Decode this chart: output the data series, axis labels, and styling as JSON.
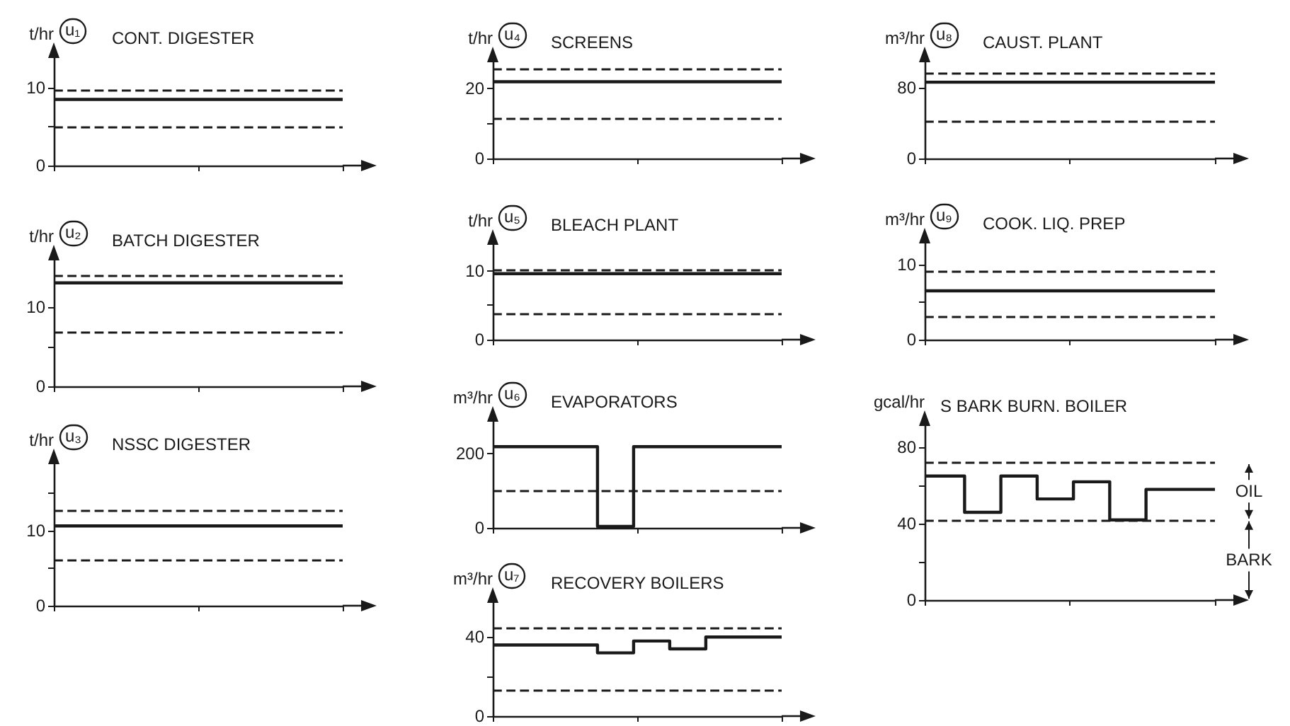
{
  "chart_data": [
    {
      "type": "step",
      "title": "CONT. DIGESTER",
      "ylabel": "t/hr",
      "subtitle": "u₁",
      "categories": [
        null,
        null,
        null
      ],
      "series": [
        {
          "color": "#1a1a1a",
          "values": [
            8.5,
            8.5,
            8.5
          ]
        }
      ],
      "ylim": [
        0,
        14
      ],
      "yticks": [
        0,
        {
          "value": 5,
          "label": null
        },
        10
      ],
      "ref_lines": [
        {
          "axis": "y",
          "value": 9.7,
          "color": "#1a1a1a",
          "line_style": "dashed"
        },
        {
          "axis": "y",
          "value": 5,
          "color": "#1a1a1a",
          "line_style": "dashed"
        }
      ],
      "tick_labels": "y",
      "marker": "none",
      "line_style": "solid"
    },
    {
      "type": "step",
      "title": "BATCH DIGESTER",
      "ylabel": "t/hr",
      "subtitle": "u₂",
      "categories": [
        null,
        null,
        null
      ],
      "series": [
        {
          "color": "#1a1a1a",
          "values": [
            13,
            13,
            13
          ]
        }
      ],
      "ylim": [
        0,
        16
      ],
      "yticks": [
        0,
        {
          "value": 5,
          "label": null
        },
        10
      ],
      "ref_lines": [
        {
          "axis": "y",
          "value": 14,
          "color": "#1a1a1a",
          "line_style": "dashed"
        },
        {
          "axis": "y",
          "value": 6.8,
          "color": "#1a1a1a",
          "line_style": "dashed"
        }
      ],
      "tick_labels": "y",
      "marker": "none",
      "line_style": "solid"
    },
    {
      "type": "step",
      "title": "NSSC DIGESTER",
      "ylabel": "t/hr",
      "subtitle": "u₃",
      "categories": [
        null,
        null,
        null
      ],
      "series": [
        {
          "color": "#1a1a1a",
          "values": [
            10.6,
            10.6,
            10.6
          ]
        }
      ],
      "ylim": [
        0,
        19
      ],
      "yticks": [
        0,
        {
          "value": 5,
          "label": null
        },
        10,
        {
          "value": 15,
          "label": null
        }
      ],
      "ref_lines": [
        {
          "axis": "y",
          "value": 12.6,
          "color": "#1a1a1a",
          "line_style": "dashed"
        },
        {
          "axis": "y",
          "value": 6,
          "color": "#1a1a1a",
          "line_style": "dashed"
        }
      ],
      "tick_labels": "y",
      "marker": "none",
      "line_style": "solid"
    },
    {
      "type": "step",
      "title": "SCREENS",
      "ylabel": "t/hr",
      "subtitle": "u₄",
      "categories": [
        null,
        null,
        null
      ],
      "series": [
        {
          "color": "#1a1a1a",
          "values": [
            22,
            22,
            22
          ]
        }
      ],
      "ylim": [
        0,
        28
      ],
      "yticks": [
        0,
        {
          "value": 10,
          "label": null
        },
        20
      ],
      "ref_lines": [
        {
          "axis": "y",
          "value": 25.6,
          "color": "#1a1a1a",
          "line_style": "dashed"
        },
        {
          "axis": "y",
          "value": 11.6,
          "color": "#1a1a1a",
          "line_style": "dashed"
        }
      ],
      "tick_labels": "y",
      "marker": "none",
      "line_style": "solid"
    },
    {
      "type": "step",
      "title": "BLEACH PLANT",
      "ylabel": "t/hr",
      "subtitle": "u₅",
      "categories": [
        null,
        null,
        null
      ],
      "series": [
        {
          "color": "#1a1a1a",
          "values": [
            9.6,
            9.6,
            9.6
          ]
        }
      ],
      "ylim": [
        0,
        14
      ],
      "yticks": [
        0,
        {
          "value": 5,
          "label": null
        },
        10
      ],
      "ref_lines": [
        {
          "axis": "y",
          "value": 10.2,
          "color": "#1a1a1a",
          "line_style": "dashed"
        },
        {
          "axis": "y",
          "value": 3.8,
          "color": "#1a1a1a",
          "line_style": "dashed"
        }
      ],
      "tick_labels": "y",
      "marker": "none",
      "line_style": "solid"
    },
    {
      "type": "step",
      "title": "EVAPORATORS",
      "ylabel": "m³/hr",
      "subtitle": "u₆",
      "categories": [
        null,
        null,
        null,
        null,
        null,
        null,
        null,
        null,
        null,
        null,
        null,
        null,
        null,
        null,
        null,
        null,
        null,
        null,
        null,
        null,
        null,
        null,
        null,
        null,
        null,
        null,
        null,
        null,
        null,
        null,
        null,
        null,
        null,
        null,
        null,
        null,
        null,
        null,
        null,
        null,
        null
      ],
      "series": [
        {
          "color": "#1a1a1a",
          "values": [
            219,
            219,
            219,
            219,
            219,
            219,
            219,
            219,
            219,
            219,
            219,
            219,
            219,
            219,
            219,
            4,
            4,
            4,
            4,
            4,
            219,
            219,
            219,
            219,
            219,
            219,
            219,
            219,
            219,
            219,
            219,
            219,
            219,
            219,
            219,
            219,
            219,
            219,
            219,
            219,
            219
          ]
        }
      ],
      "ylim": [
        0,
        290
      ],
      "yticks": [
        0,
        200
      ],
      "ref_lines": [
        {
          "axis": "y",
          "value": 100,
          "color": "#1a1a1a",
          "line_style": "dashed"
        }
      ],
      "tick_labels": "y",
      "marker": "none",
      "line_style": "solid"
    },
    {
      "type": "step",
      "title": "RECOVERY BOILERS",
      "ylabel": "m³/hr",
      "subtitle": "u₇",
      "categories": [
        null,
        null,
        null,
        null,
        null,
        null,
        null,
        null,
        null,
        null,
        null,
        null,
        null,
        null,
        null,
        null,
        null,
        null,
        null,
        null,
        null,
        null,
        null,
        null,
        null,
        null,
        null,
        null,
        null,
        null,
        null,
        null,
        null,
        null,
        null,
        null,
        null,
        null,
        null,
        null,
        null
      ],
      "series": [
        {
          "color": "#1a1a1a",
          "values": [
            36,
            36,
            36,
            36,
            36,
            36,
            36,
            36,
            36,
            36,
            36,
            36,
            36,
            36,
            36,
            32,
            32,
            32,
            32,
            32,
            38,
            38,
            38,
            38,
            38,
            34,
            34,
            34,
            34,
            34,
            40,
            40,
            40,
            40,
            40,
            40,
            40,
            40,
            40,
            40,
            40
          ]
        }
      ],
      "ylim": [
        0,
        58
      ],
      "yticks": [
        0,
        {
          "value": 20,
          "label": null
        },
        40
      ],
      "ref_lines": [
        {
          "axis": "y",
          "value": 44.5,
          "color": "#1a1a1a",
          "line_style": "dashed"
        },
        {
          "axis": "y",
          "value": 13,
          "color": "#1a1a1a",
          "line_style": "dashed"
        }
      ],
      "tick_labels": "y",
      "marker": "none",
      "line_style": "solid"
    },
    {
      "type": "step",
      "title": "CAUST. PLANT",
      "ylabel": "m³/hr",
      "subtitle": "u₈",
      "categories": [
        null,
        null,
        null
      ],
      "series": [
        {
          "color": "#1a1a1a",
          "values": [
            86,
            86,
            86
          ]
        }
      ],
      "ylim": [
        0,
        110
      ],
      "yticks": [
        0,
        80
      ],
      "ref_lines": [
        {
          "axis": "y",
          "value": 96,
          "color": "#1a1a1a",
          "line_style": "dashed"
        },
        {
          "axis": "y",
          "value": 42,
          "color": "#1a1a1a",
          "line_style": "dashed"
        }
      ],
      "tick_labels": "y",
      "marker": "none",
      "line_style": "solid"
    },
    {
      "type": "step",
      "title": "COOK. LIQ. PREP",
      "ylabel": "m³/hr",
      "subtitle": "u₉",
      "categories": [
        null,
        null,
        null
      ],
      "series": [
        {
          "color": "#1a1a1a",
          "values": [
            6.5,
            6.5,
            6.5
          ]
        }
      ],
      "ylim": [
        0,
        13
      ],
      "yticks": [
        0,
        {
          "value": 5,
          "label": null
        },
        10
      ],
      "ref_lines": [
        {
          "axis": "y",
          "value": 9,
          "color": "#1a1a1a",
          "line_style": "dashed"
        },
        {
          "axis": "y",
          "value": 3.1,
          "color": "#1a1a1a",
          "line_style": "dashed"
        }
      ],
      "tick_labels": "y",
      "marker": "none",
      "line_style": "solid"
    },
    {
      "type": "step",
      "title": "S BARK BURN. BOILER",
      "ylabel": "gcal/hr",
      "annotations": [
        "OIL",
        "BARK"
      ],
      "categories": [
        null,
        null,
        null,
        null,
        null,
        null,
        null,
        null,
        null,
        null,
        null,
        null,
        null,
        null,
        null,
        null,
        null,
        null,
        null,
        null,
        null,
        null,
        null,
        null,
        null,
        null,
        null,
        null,
        null,
        null,
        null,
        null,
        null,
        null,
        null,
        null,
        null,
        null,
        null,
        null,
        null
      ],
      "series": [
        {
          "color": "#1a1a1a",
          "values": [
            65,
            65,
            65,
            65,
            65,
            65,
            46,
            46,
            46,
            46,
            46,
            65,
            65,
            65,
            65,
            65,
            53,
            53,
            53,
            53,
            53,
            62,
            62,
            62,
            62,
            62,
            42,
            42,
            42,
            42,
            42,
            58,
            58,
            58,
            58,
            58,
            58,
            58,
            58,
            58,
            58
          ]
        }
      ],
      "ylim": [
        0,
        92
      ],
      "yticks": [
        0,
        {
          "value": 20,
          "label": null
        },
        40,
        {
          "value": 60,
          "label": null
        },
        80
      ],
      "ref_lines": [
        {
          "axis": "y",
          "value": 72,
          "color": "#1a1a1a",
          "line_style": "dashed"
        },
        {
          "axis": "y",
          "value": 42,
          "color": "#1a1a1a",
          "line_style": "dashed"
        }
      ],
      "tick_labels": "y",
      "marker": "none",
      "line_style": "solid"
    }
  ]
}
